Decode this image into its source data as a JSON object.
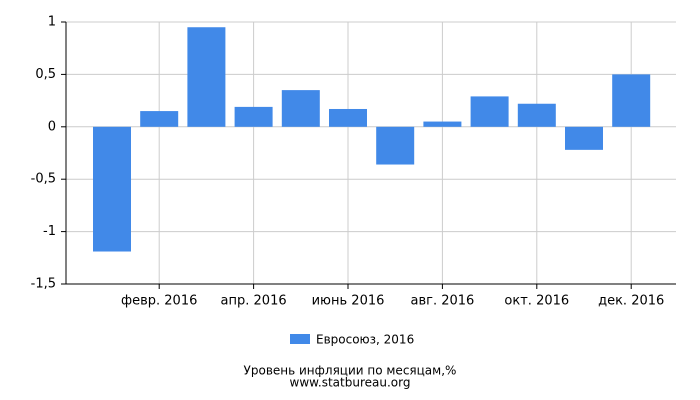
{
  "chart_data": {
    "type": "bar",
    "title": "Уровень инфляции по месяцам,%",
    "subtitle": "www.statbureau.org",
    "categories": [
      null,
      "февр. 2016",
      null,
      "апр. 2016",
      null,
      "июнь 2016",
      null,
      "авг. 2016",
      null,
      "окт. 2016",
      null,
      "дек. 2016"
    ],
    "series": [
      {
        "name": "Евросоюз, 2016",
        "color": "#4189e8",
        "values": [
          -1.19,
          0.15,
          0.95,
          0.19,
          0.35,
          0.17,
          -0.36,
          0.05,
          0.29,
          0.22,
          -0.22,
          0.5
        ]
      }
    ],
    "ylim": [
      -1.5,
      1
    ],
    "yticks": [
      {
        "value": -1.5,
        "label": "-1,5"
      },
      -1,
      {
        "value": -0.5,
        "label": "-0,5"
      },
      0,
      {
        "value": 0.5,
        "label": "0,5"
      },
      1
    ],
    "grid": true,
    "legend": "bottom"
  }
}
